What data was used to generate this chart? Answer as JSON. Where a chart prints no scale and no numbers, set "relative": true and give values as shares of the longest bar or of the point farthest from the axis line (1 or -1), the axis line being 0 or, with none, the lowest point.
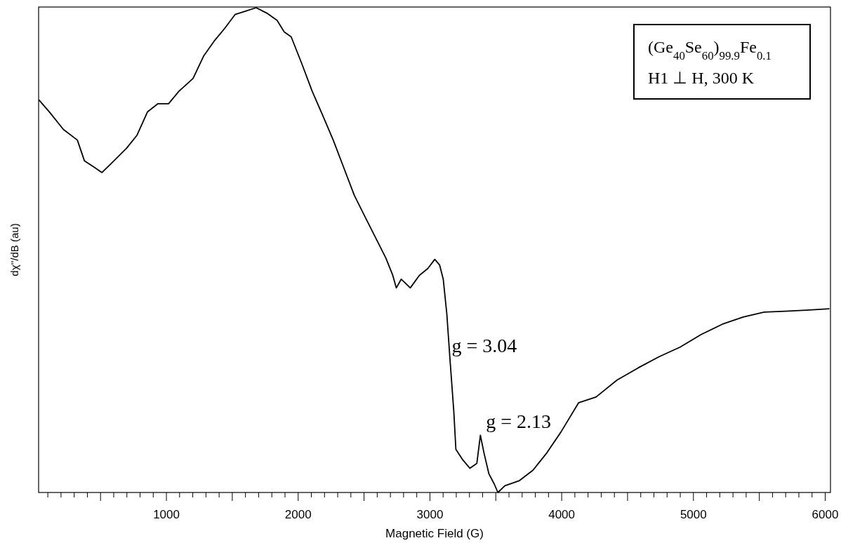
{
  "chart_data": {
    "type": "line",
    "relative": true,
    "xlabel": "Magnetic Field (G)",
    "ylabel": "dχ''/dB  (au)",
    "xlim": [
      30,
      6040
    ],
    "xticks": [
      {
        "value": 100,
        "label": null
      },
      {
        "value": 200,
        "label": null
      },
      {
        "value": 300,
        "label": null
      },
      {
        "value": 400,
        "label": null
      },
      {
        "value": 500,
        "label": null
      },
      {
        "value": 600,
        "label": null
      },
      {
        "value": 700,
        "label": null
      },
      {
        "value": 800,
        "label": null
      },
      {
        "value": 900,
        "label": null
      },
      1000,
      {
        "value": 1100,
        "label": null
      },
      {
        "value": 1200,
        "label": null
      },
      {
        "value": 1300,
        "label": null
      },
      {
        "value": 1400,
        "label": null
      },
      {
        "value": 1500,
        "label": null
      },
      {
        "value": 1600,
        "label": null
      },
      {
        "value": 1700,
        "label": null
      },
      {
        "value": 1800,
        "label": null
      },
      {
        "value": 1900,
        "label": null
      },
      2000,
      {
        "value": 2100,
        "label": null
      },
      {
        "value": 2200,
        "label": null
      },
      {
        "value": 2300,
        "label": null
      },
      {
        "value": 2400,
        "label": null
      },
      {
        "value": 2500,
        "label": null
      },
      {
        "value": 2600,
        "label": null
      },
      {
        "value": 2700,
        "label": null
      },
      {
        "value": 2800,
        "label": null
      },
      {
        "value": 2900,
        "label": null
      },
      3000,
      {
        "value": 3100,
        "label": null
      },
      {
        "value": 3200,
        "label": null
      },
      {
        "value": 3300,
        "label": null
      },
      {
        "value": 3400,
        "label": null
      },
      {
        "value": 3500,
        "label": null
      },
      {
        "value": 3600,
        "label": null
      },
      {
        "value": 3700,
        "label": null
      },
      {
        "value": 3800,
        "label": null
      },
      {
        "value": 3900,
        "label": null
      },
      4000,
      {
        "value": 4100,
        "label": null
      },
      {
        "value": 4200,
        "label": null
      },
      {
        "value": 4300,
        "label": null
      },
      {
        "value": 4400,
        "label": null
      },
      {
        "value": 4500,
        "label": null
      },
      {
        "value": 4600,
        "label": null
      },
      {
        "value": 4700,
        "label": null
      },
      {
        "value": 4800,
        "label": null
      },
      {
        "value": 4900,
        "label": null
      },
      5000,
      {
        "value": 5100,
        "label": null
      },
      {
        "value": 5200,
        "label": null
      },
      {
        "value": 5300,
        "label": null
      },
      {
        "value": 5400,
        "label": null
      },
      {
        "value": 5500,
        "label": null
      },
      {
        "value": 5600,
        "label": null
      },
      {
        "value": 5700,
        "label": null
      },
      {
        "value": 5800,
        "label": null
      },
      {
        "value": 5900,
        "label": null
      },
      6000
    ],
    "tick_labels": "x",
    "series": [
      {
        "color": "#000000",
        "x": [
          32,
          112,
          218,
          324,
          378,
          457,
          511,
          590,
          697,
          777,
          856,
          936,
          1016,
          1096,
          1202,
          1282,
          1362,
          1441,
          1521,
          1601,
          1681,
          1761,
          1840,
          1894,
          1947,
          2027,
          2106,
          2186,
          2266,
          2346,
          2426,
          2505,
          2585,
          2665,
          2718,
          2745,
          2782,
          2851,
          2920,
          2984,
          3037,
          3074,
          3101,
          3128,
          3154,
          3181,
          3197,
          3250,
          3303,
          3356,
          3383,
          3410,
          3447,
          3489,
          3516,
          3569,
          3676,
          3782,
          3888,
          3995,
          4128,
          4261,
          4420,
          4580,
          4739,
          4899,
          5059,
          5218,
          5378,
          5537,
          5697,
          5856,
          6032
        ],
        "values": [
          0.81,
          0.785,
          0.749,
          0.727,
          0.684,
          0.67,
          0.66,
          0.681,
          0.71,
          0.737,
          0.785,
          0.802,
          0.802,
          0.828,
          0.854,
          0.9,
          0.931,
          0.957,
          0.986,
          0.993,
          1,
          0.989,
          0.974,
          0.95,
          0.94,
          0.885,
          0.828,
          0.778,
          0.727,
          0.67,
          0.613,
          0.57,
          0.527,
          0.484,
          0.448,
          0.422,
          0.44,
          0.422,
          0.448,
          0.462,
          0.481,
          0.469,
          0.44,
          0.369,
          0.268,
          0.168,
          0.089,
          0.067,
          0.05,
          0.06,
          0.118,
          0.082,
          0.039,
          0.017,
          0,
          0.014,
          0.024,
          0.046,
          0.082,
          0.125,
          0.185,
          0.197,
          0.232,
          0.257,
          0.28,
          0.3,
          0.326,
          0.347,
          0.362,
          0.372,
          0.374,
          0.376,
          0.379
        ]
      }
    ],
    "annotations": [
      {
        "text": "g = 3.04",
        "x": 3150,
        "y": 0.3
      },
      {
        "text": "g = 2.13",
        "x": 3383,
        "y": 0.118
      },
      "(Ge$_{40}$Se$_{60}$)$_{99.9}$Fe$_{0.1}$",
      "H1 ⊥ H, 300 K"
    ]
  }
}
